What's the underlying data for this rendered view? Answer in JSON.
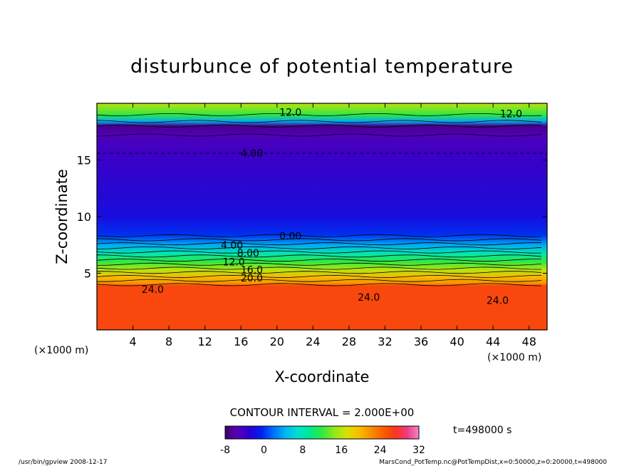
{
  "chart_data": {
    "type": "heatmap",
    "title": "disturbunce of potential temperature",
    "xlabel": "X-coordinate",
    "ylabel": "Z-coordinate",
    "x_unit_left": "(×1000 m)",
    "x_unit_right": "(×1000 m)",
    "xlim": [
      0,
      50
    ],
    "ylim": [
      0,
      20
    ],
    "xticks": [
      "4",
      "8",
      "12",
      "16",
      "20",
      "24",
      "28",
      "32",
      "36",
      "40",
      "44",
      "48"
    ],
    "yticks": [
      "5",
      "10",
      "15"
    ],
    "contour_labels": [
      {
        "text": "12.0",
        "x": 21.5,
        "z": 19.2
      },
      {
        "text": "12.0",
        "x": 46.0,
        "z": 19.1
      },
      {
        "text": "4.00",
        "x": 17.2,
        "z": 15.6
      },
      {
        "text": "0.00",
        "x": 21.5,
        "z": 8.3
      },
      {
        "text": "4.00",
        "x": 15.0,
        "z": 7.5
      },
      {
        "text": "8.00",
        "x": 16.8,
        "z": 6.8
      },
      {
        "text": "12.0",
        "x": 15.2,
        "z": 6.0
      },
      {
        "text": "16.0",
        "x": 17.2,
        "z": 5.3
      },
      {
        "text": "20.0",
        "x": 17.2,
        "z": 4.6
      },
      {
        "text": "24.0",
        "x": 6.2,
        "z": 3.6
      },
      {
        "text": "24.0",
        "x": 30.2,
        "z": 2.9
      },
      {
        "text": "24.0",
        "x": 44.5,
        "z": 2.6
      }
    ],
    "contour_interval_text": "CONTOUR INTERVAL = 2.000E+00",
    "colorbar": {
      "min": -8,
      "max": 32,
      "ticks": [
        "-8",
        "0",
        "8",
        "16",
        "24",
        "32"
      ],
      "colors": [
        "#3a006e",
        "#5a00b4",
        "#2a00d0",
        "#0020f0",
        "#0070f8",
        "#00b8f0",
        "#00e0d0",
        "#00e890",
        "#30e840",
        "#90e820",
        "#d8e000",
        "#f8c000",
        "#f89000",
        "#f86000",
        "#f83818",
        "#f03880",
        "#f088c8"
      ]
    },
    "field_profile": [
      {
        "z": 0.0,
        "value": 26
      },
      {
        "z": 3.9,
        "value": 26
      },
      {
        "z": 4.1,
        "value": 22
      },
      {
        "z": 4.6,
        "value": 20
      },
      {
        "z": 5.3,
        "value": 16
      },
      {
        "z": 6.0,
        "value": 12
      },
      {
        "z": 6.8,
        "value": 8
      },
      {
        "z": 7.5,
        "value": 4
      },
      {
        "z": 8.4,
        "value": 0
      },
      {
        "z": 10.0,
        "value": -2
      },
      {
        "z": 15.6,
        "value": -4
      },
      {
        "z": 17.2,
        "value": -5
      },
      {
        "z": 18.0,
        "value": -7
      },
      {
        "z": 18.4,
        "value": 4
      },
      {
        "z": 19.0,
        "value": 12
      },
      {
        "z": 20.0,
        "value": 16
      }
    ],
    "time_text": "t=498000 s"
  },
  "footer": {
    "program": "/usr/bin/gpview   2008-12-17",
    "source": "MarsCond_PotTemp.nc@PotTempDist,x=0:50000,z=0:20000,t=498000"
  }
}
